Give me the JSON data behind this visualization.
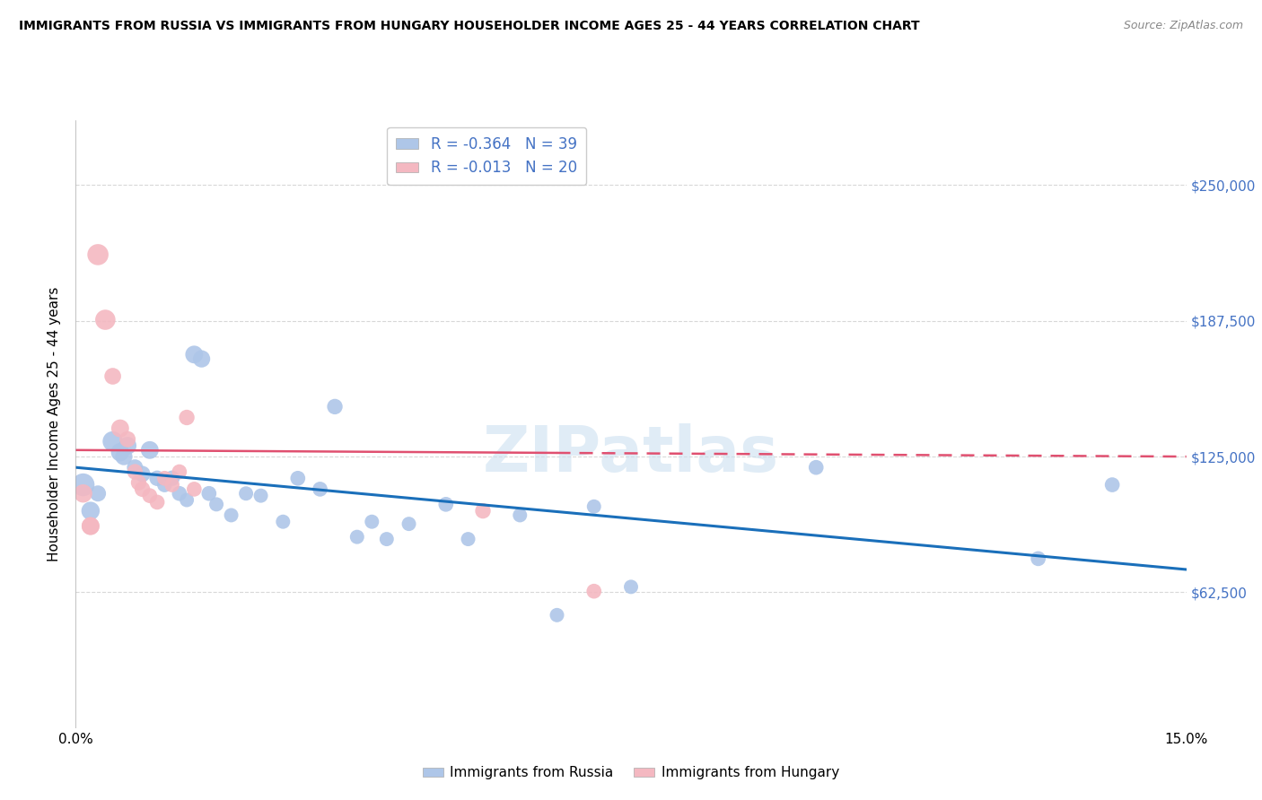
{
  "title": "IMMIGRANTS FROM RUSSIA VS IMMIGRANTS FROM HUNGARY HOUSEHOLDER INCOME AGES 25 - 44 YEARS CORRELATION CHART",
  "source": "Source: ZipAtlas.com",
  "ylabel": "Householder Income Ages 25 - 44 years",
  "xlim": [
    0.0,
    0.15
  ],
  "ylim": [
    0,
    280000
  ],
  "yticks": [
    62500,
    125000,
    187500,
    250000
  ],
  "ytick_labels": [
    "$62,500",
    "$125,000",
    "$187,500",
    "$250,000"
  ],
  "xticks": [
    0.0,
    0.03,
    0.06,
    0.09,
    0.12,
    0.15
  ],
  "xtick_labels": [
    "0.0%",
    "",
    "",
    "",
    "",
    "15.0%"
  ],
  "russia_color": "#aec6e8",
  "hungary_color": "#f4b8c1",
  "russia_line_color": "#1a6fba",
  "hungary_line_color": "#e05070",
  "russia_R": -0.364,
  "russia_N": 39,
  "hungary_R": -0.013,
  "hungary_N": 20,
  "watermark": "ZIPatlas",
  "legend_label_russia": "Immigrants from Russia",
  "legend_label_hungary": "Immigrants from Hungary",
  "russia_line": [
    0.0,
    120000,
    0.15,
    73000
  ],
  "hungary_line": [
    0.0,
    128000,
    0.15,
    125000
  ],
  "russia_points": [
    [
      0.001,
      112000,
      28
    ],
    [
      0.002,
      100000,
      18
    ],
    [
      0.003,
      108000,
      14
    ],
    [
      0.005,
      132000,
      22
    ],
    [
      0.006,
      127000,
      18
    ],
    [
      0.0065,
      125000,
      16
    ],
    [
      0.007,
      130000,
      17
    ],
    [
      0.008,
      120000,
      14
    ],
    [
      0.009,
      117000,
      14
    ],
    [
      0.01,
      128000,
      17
    ],
    [
      0.011,
      115000,
      13
    ],
    [
      0.012,
      112000,
      12
    ],
    [
      0.013,
      115000,
      13
    ],
    [
      0.014,
      108000,
      12
    ],
    [
      0.015,
      105000,
      11
    ],
    [
      0.016,
      172000,
      17
    ],
    [
      0.017,
      170000,
      16
    ],
    [
      0.018,
      108000,
      12
    ],
    [
      0.019,
      103000,
      11
    ],
    [
      0.021,
      98000,
      11
    ],
    [
      0.023,
      108000,
      11
    ],
    [
      0.025,
      107000,
      11
    ],
    [
      0.028,
      95000,
      11
    ],
    [
      0.03,
      115000,
      12
    ],
    [
      0.033,
      110000,
      12
    ],
    [
      0.035,
      148000,
      13
    ],
    [
      0.038,
      88000,
      11
    ],
    [
      0.04,
      95000,
      11
    ],
    [
      0.042,
      87000,
      11
    ],
    [
      0.045,
      94000,
      11
    ],
    [
      0.05,
      103000,
      12
    ],
    [
      0.053,
      87000,
      11
    ],
    [
      0.06,
      98000,
      11
    ],
    [
      0.065,
      52000,
      11
    ],
    [
      0.07,
      102000,
      11
    ],
    [
      0.075,
      65000,
      11
    ],
    [
      0.1,
      120000,
      12
    ],
    [
      0.13,
      78000,
      12
    ],
    [
      0.14,
      112000,
      12
    ]
  ],
  "hungary_points": [
    [
      0.001,
      108000,
      18
    ],
    [
      0.002,
      93000,
      17
    ],
    [
      0.003,
      218000,
      24
    ],
    [
      0.004,
      188000,
      22
    ],
    [
      0.005,
      162000,
      15
    ],
    [
      0.006,
      138000,
      17
    ],
    [
      0.007,
      133000,
      14
    ],
    [
      0.008,
      118000,
      13
    ],
    [
      0.0085,
      113000,
      13
    ],
    [
      0.009,
      110000,
      13
    ],
    [
      0.01,
      107000,
      12
    ],
    [
      0.011,
      104000,
      12
    ],
    [
      0.012,
      115000,
      12
    ],
    [
      0.013,
      112000,
      12
    ],
    [
      0.014,
      118000,
      12
    ],
    [
      0.015,
      143000,
      13
    ],
    [
      0.016,
      110000,
      12
    ],
    [
      0.055,
      100000,
      13
    ],
    [
      0.07,
      63000,
      12
    ],
    [
      0.002,
      93000,
      17
    ]
  ],
  "background_color": "#ffffff",
  "grid_color": "#d8d8d8"
}
